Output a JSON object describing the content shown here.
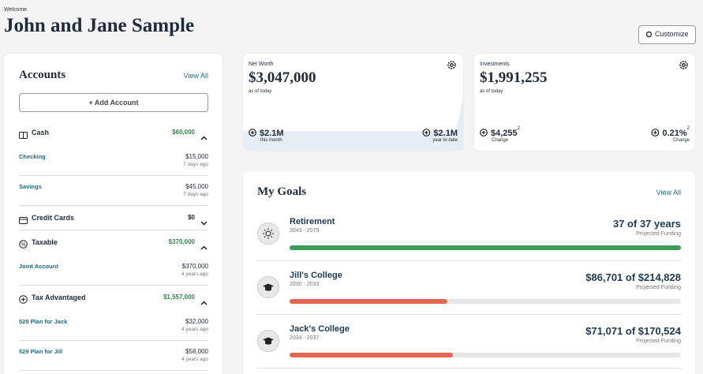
{
  "header": {
    "welcome": "Welcome",
    "title": "John and Jane Sample",
    "customize": "Customize"
  },
  "accounts": {
    "title": "Accounts",
    "view_all": "View All",
    "add": "Add Account",
    "groups": [
      {
        "name": "Cash",
        "total": "$60,000",
        "expanded": true,
        "items": [
          {
            "name": "Checking",
            "amount": "$15,000",
            "updated": "7 days ago"
          },
          {
            "name": "Savings",
            "amount": "$45,000",
            "updated": "7 days ago"
          }
        ]
      },
      {
        "name": "Credit Cards",
        "total": "$0",
        "expanded": false
      },
      {
        "name": "Taxable",
        "total": "$370,000",
        "expanded": true,
        "items": [
          {
            "name": "Joint Account",
            "amount": "$370,000",
            "updated": "4 years ago"
          }
        ]
      },
      {
        "name": "Tax Advantaged",
        "total": "$1,557,000",
        "expanded": true,
        "items": [
          {
            "name": "529 Plan for Jack",
            "amount": "$32,000",
            "updated": "4 years ago"
          },
          {
            "name": "529 Plan for Jill",
            "amount": "$58,000",
            "updated": "4 years ago"
          }
        ]
      }
    ]
  },
  "net_worth": {
    "label": "Net Worth",
    "value": "$3,047,000",
    "as_of": "as of today",
    "stats": [
      {
        "value": "$2.1M",
        "label": "this month"
      },
      {
        "value": "$2.1M",
        "label": "year to date"
      }
    ]
  },
  "investments": {
    "label": "Investments",
    "value": "$1,991,255",
    "as_of": "as of today",
    "stats": [
      {
        "value": "$4,255",
        "note": "2",
        "label": "Change"
      },
      {
        "value": "0.21%",
        "note": "2",
        "label": "Change"
      }
    ]
  },
  "goals": {
    "title": "My Goals",
    "view_all": "View All",
    "items": [
      {
        "name": "Retirement",
        "years": "2043 - 2079",
        "funding": "37 of 37 years",
        "funding_label": "Projected Funding",
        "color": "#3f9c55"
      },
      {
        "name": "Jill's College",
        "years": "2030 - 2033",
        "funding": "$86,701 of $214,828",
        "funding_label": "Projected Funding",
        "color": "#e36655"
      },
      {
        "name": "Jack's College",
        "years": "2034 - 2037",
        "funding": "$71,071 of $170,524",
        "funding_label": "Projected Funding",
        "color": "#e36655"
      }
    ]
  }
}
